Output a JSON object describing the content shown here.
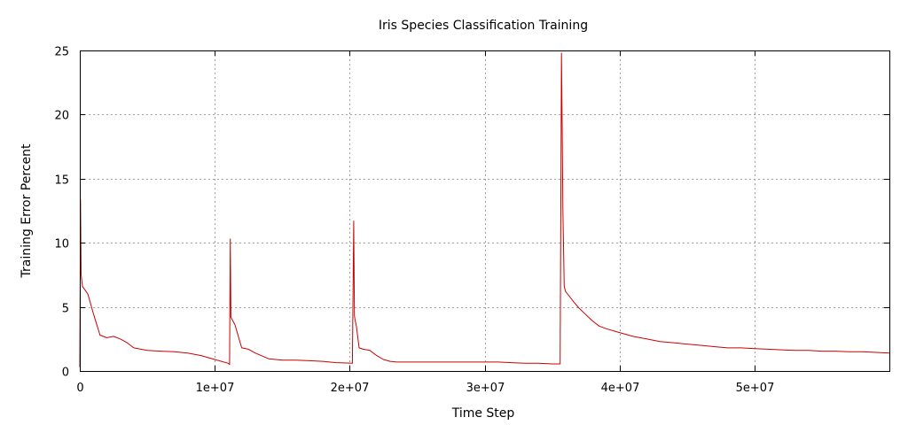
{
  "chart_data": {
    "type": "line",
    "title": "Iris Species Classification Training",
    "xlabel": "Time Step",
    "ylabel": "Training Error Percent",
    "xlim": [
      0,
      60000000
    ],
    "ylim": [
      0,
      25
    ],
    "x_ticks": [
      {
        "value": 0,
        "label": "0"
      },
      {
        "value": 10000000,
        "label": "1e+07"
      },
      {
        "value": 20000000,
        "label": "2e+07"
      },
      {
        "value": 30000000,
        "label": "3e+07"
      },
      {
        "value": 40000000,
        "label": "4e+07"
      },
      {
        "value": 50000000,
        "label": "5e+07"
      }
    ],
    "y_ticks": [
      {
        "value": 0,
        "label": "0"
      },
      {
        "value": 5,
        "label": "5"
      },
      {
        "value": 10,
        "label": "10"
      },
      {
        "value": 15,
        "label": "15"
      },
      {
        "value": 20,
        "label": "20"
      },
      {
        "value": 25,
        "label": "25"
      }
    ],
    "grid": true,
    "series": [
      {
        "color": "#cc0000",
        "x": [
          0,
          50000,
          100000,
          200000,
          400000,
          600000,
          1000000,
          1500000,
          2000000,
          2500000,
          3000000,
          3500000,
          4000000,
          5000000,
          6000000,
          7000000,
          8000000,
          9000000,
          10000000,
          11000000,
          11100000,
          11150000,
          11200000,
          11300000,
          11500000,
          12000000,
          12500000,
          13000000,
          14000000,
          15000000,
          16000000,
          17000000,
          18000000,
          19000000,
          20200000,
          20300000,
          20350000,
          20400000,
          20500000,
          20700000,
          21000000,
          21500000,
          22000000,
          22500000,
          23000000,
          23500000,
          24000000,
          25000000,
          26000000,
          27000000,
          28000000,
          29000000,
          30000000,
          31000000,
          32000000,
          33000000,
          34000000,
          35000000,
          35600000,
          35700000,
          35750000,
          35800000,
          35900000,
          36000000,
          36300000,
          36600000,
          37000000,
          37500000,
          38000000,
          38500000,
          39000000,
          40000000,
          41000000,
          42000000,
          43000000,
          44000000,
          45000000,
          46000000,
          47000000,
          48000000,
          49000000,
          50000000,
          51000000,
          52000000,
          53000000,
          54000000,
          55000000,
          56000000,
          57000000,
          58000000,
          59000000,
          60000000
        ],
        "y": [
          0.3,
          13.4,
          7.5,
          6.6,
          6.3,
          6.0,
          4.5,
          2.8,
          2.6,
          2.7,
          2.5,
          2.2,
          1.8,
          1.6,
          1.55,
          1.5,
          1.4,
          1.2,
          0.9,
          0.6,
          0.5,
          10.3,
          4.2,
          4.0,
          3.6,
          1.8,
          1.7,
          1.4,
          0.95,
          0.85,
          0.85,
          0.8,
          0.75,
          0.65,
          0.6,
          11.7,
          4.3,
          4.0,
          3.5,
          1.8,
          1.7,
          1.6,
          1.2,
          0.9,
          0.75,
          0.7,
          0.7,
          0.7,
          0.7,
          0.7,
          0.7,
          0.7,
          0.7,
          0.7,
          0.65,
          0.6,
          0.6,
          0.55,
          0.55,
          24.8,
          19.0,
          12.6,
          6.6,
          6.2,
          5.8,
          5.4,
          4.9,
          4.4,
          3.9,
          3.5,
          3.3,
          3.0,
          2.7,
          2.5,
          2.3,
          2.2,
          2.1,
          2.0,
          1.9,
          1.8,
          1.8,
          1.75,
          1.7,
          1.65,
          1.6,
          1.6,
          1.55,
          1.55,
          1.5,
          1.5,
          1.45,
          1.4
        ]
      }
    ]
  }
}
